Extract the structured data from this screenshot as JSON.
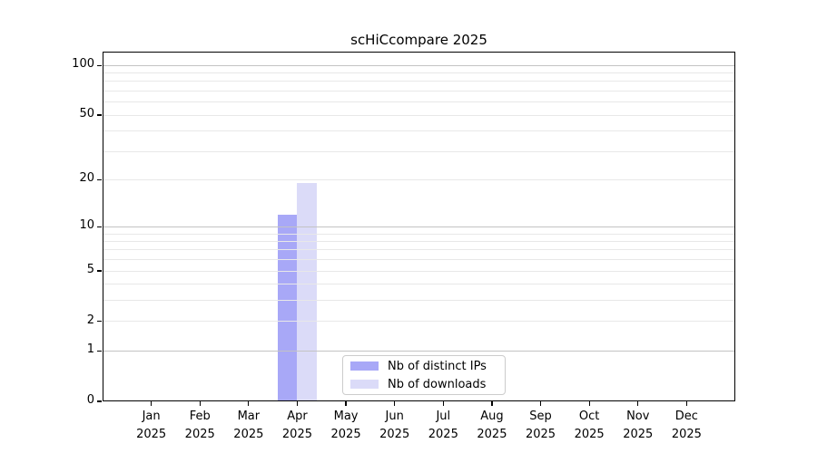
{
  "title": "scHiCcompare 2025",
  "chart_data": {
    "type": "bar",
    "title": "scHiCcompare 2025",
    "categories": [
      "Jan",
      "Feb",
      "Mar",
      "Apr",
      "May",
      "Jun",
      "Jul",
      "Aug",
      "Sep",
      "Oct",
      "Nov",
      "Dec"
    ],
    "category_year": "2025",
    "series": [
      {
        "name": "Nb of distinct IPs",
        "color": "#a8a8f7",
        "values": [
          0,
          0,
          0,
          12,
          0,
          0,
          0,
          0,
          0,
          0,
          0,
          0
        ]
      },
      {
        "name": "Nb of downloads",
        "color": "#dbdbf8",
        "values": [
          0,
          0,
          0,
          19,
          0,
          0,
          0,
          0,
          0,
          0,
          0,
          0
        ]
      }
    ],
    "xlabel": "",
    "ylabel": "",
    "y_scale": "log1p",
    "y_ticks": [
      0,
      1,
      2,
      5,
      10,
      20,
      50,
      100
    ],
    "y_major_gridlines": [
      1,
      10,
      100
    ],
    "y_minor_gridlines": [
      2,
      3,
      4,
      5,
      6,
      7,
      8,
      9,
      20,
      30,
      40,
      50,
      60,
      70,
      80,
      90
    ],
    "ylim": [
      0,
      121
    ],
    "grid": "horizontal",
    "legend_position": "lower center"
  },
  "colors": {
    "grid_minor": "#e8e8e8",
    "grid_major": "#c3c3c3",
    "frame": "#000000",
    "legend_border": "#cccccc"
  }
}
